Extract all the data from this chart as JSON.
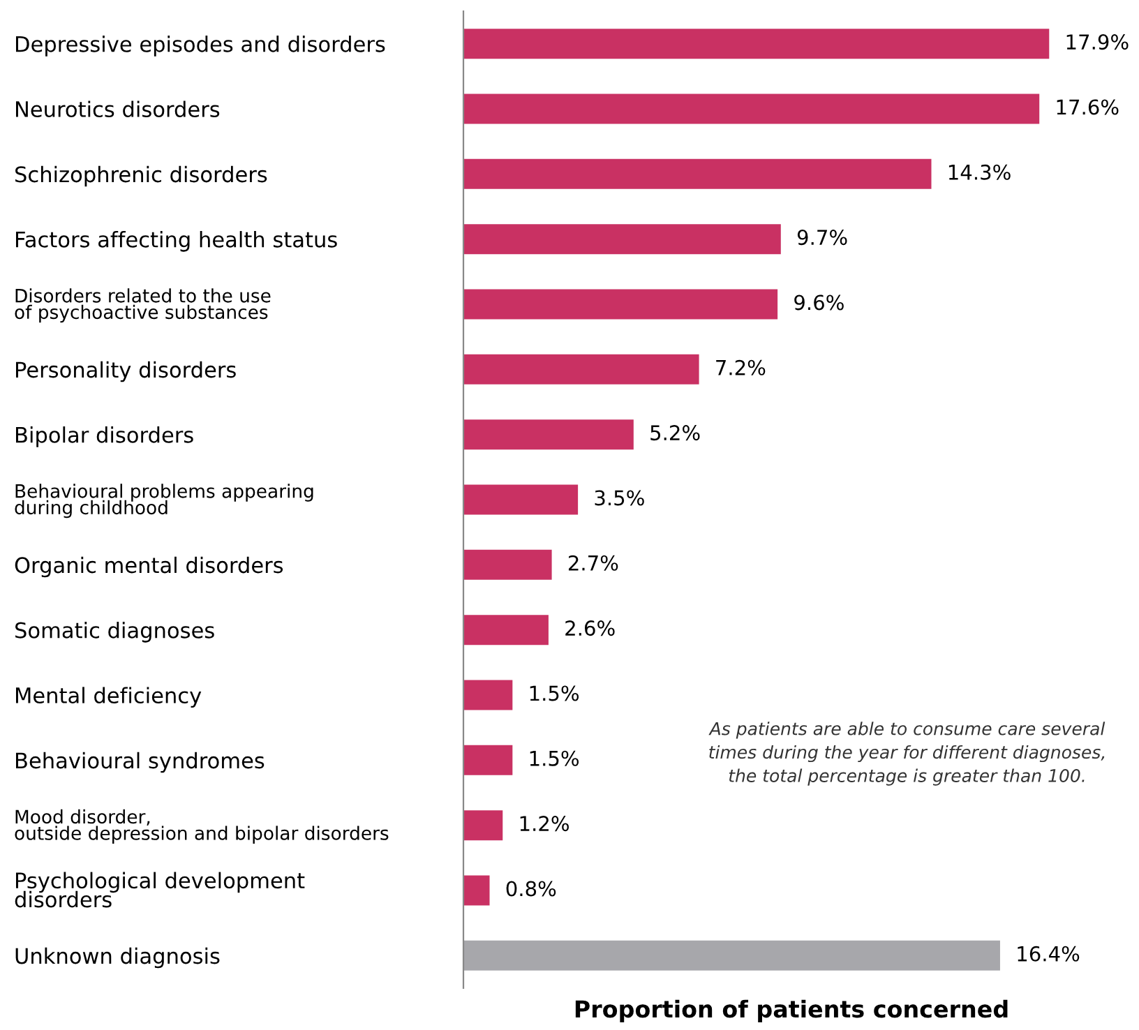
{
  "chart_data": {
    "type": "bar",
    "orientation": "horizontal",
    "xlabel": "Proportion of patients concerned",
    "categories": [
      "Depressive episodes and disorders",
      "Neurotics disorders",
      "Schizophrenic disorders",
      "Factors affecting health status",
      "Disorders related to the use\nof psychoactive substances",
      "Personality disorders",
      "Bipolar disorders",
      "Behavioural problems appearing\nduring childhood",
      "Organic mental disorders",
      "Somatic diagnoses",
      "Mental deficiency",
      "Behavioural syndromes",
      "Mood disorder,\noutside depression and bipolar disorders",
      "Psychological development\ndisorders",
      "Unknown diagnosis"
    ],
    "values": [
      17.9,
      17.6,
      14.3,
      9.7,
      9.6,
      7.2,
      5.2,
      3.5,
      2.7,
      2.6,
      1.5,
      1.5,
      1.2,
      0.8,
      16.4
    ],
    "value_labels": [
      "17.9%",
      "17.6%",
      "14.3%",
      "9.7%",
      "9.6%",
      "7.2%",
      "5.2%",
      "3.5%",
      "2.7%",
      "2.6%",
      "1.5%",
      "1.5%",
      "1.2%",
      "0.8%",
      "16.4%"
    ],
    "colors": [
      "#c93163",
      "#c93163",
      "#c93163",
      "#c93163",
      "#c93163",
      "#c93163",
      "#c93163",
      "#c93163",
      "#c93163",
      "#c93163",
      "#c93163",
      "#c93163",
      "#c93163",
      "#c93163",
      "#a7a7ab"
    ],
    "annotations": [
      "As patients are able to consume care several\ntimes during the year for different diagnoses,\nthe total percentage is greater than 100."
    ],
    "grid": false,
    "legend": false
  }
}
